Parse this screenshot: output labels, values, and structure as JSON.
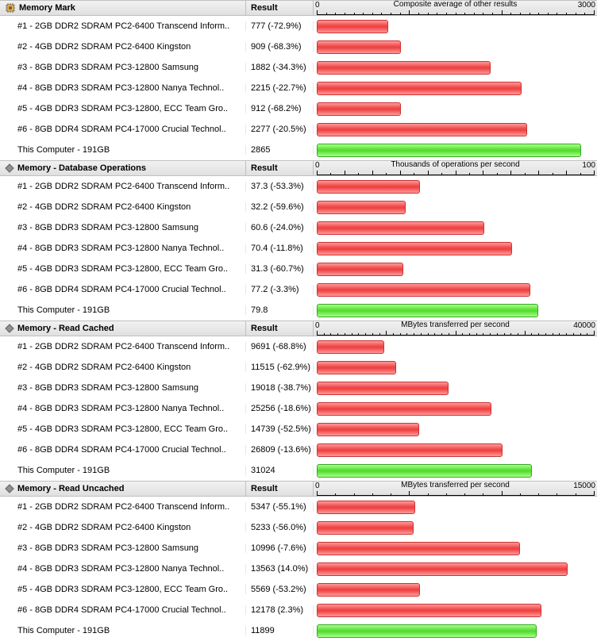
{
  "columns": {
    "name_width": 310,
    "result_width": 85
  },
  "result_header": "Result",
  "bar_colors": {
    "red": "#ee4444",
    "green": "#55dd33"
  },
  "sections": [
    {
      "icon": "memory-chip-icon",
      "title": "Memory Mark",
      "axis_title": "Composite average of other results",
      "axis_min_label": "0",
      "axis_max_label": "3000",
      "axis_max": 3000,
      "major_ticks": 3,
      "minor_per_major": 10,
      "rows": [
        {
          "name": "#1 - 2GB DDR2 SDRAM PC2-6400 Transcend Inform..",
          "result": "777 (-72.9%)",
          "value": 777,
          "color": "red"
        },
        {
          "name": "#2 - 4GB DDR2 SDRAM PC2-6400 Kingston",
          "result": "909 (-68.3%)",
          "value": 909,
          "color": "red"
        },
        {
          "name": "#3 - 8GB DDR3 SDRAM PC3-12800 Samsung",
          "result": "1882 (-34.3%)",
          "value": 1882,
          "color": "red"
        },
        {
          "name": "#4 - 8GB DDR3 SDRAM PC3-12800 Nanya Technol..",
          "result": "2215 (-22.7%)",
          "value": 2215,
          "color": "red"
        },
        {
          "name": "#5 - 4GB DDR3 SDRAM PC3-12800, ECC Team Gro..",
          "result": "912 (-68.2%)",
          "value": 912,
          "color": "red"
        },
        {
          "name": "#6 - 8GB DDR4 SDRAM PC4-17000 Crucial Technol..",
          "result": "2277 (-20.5%)",
          "value": 2277,
          "color": "red"
        },
        {
          "name": "This Computer - 191GB",
          "result": "2865",
          "value": 2865,
          "color": "green"
        }
      ]
    },
    {
      "icon": "diamond-icon",
      "title": "Memory - Database Operations",
      "axis_title": "Thousands of operations per second",
      "axis_min_label": "0",
      "axis_max_label": "100",
      "axis_max": 100,
      "major_ticks": 10,
      "minor_per_major": 2,
      "rows": [
        {
          "name": "#1 - 2GB DDR2 SDRAM PC2-6400 Transcend Inform..",
          "result": "37.3 (-53.3%)",
          "value": 37.3,
          "color": "red"
        },
        {
          "name": "#2 - 4GB DDR2 SDRAM PC2-6400 Kingston",
          "result": "32.2 (-59.6%)",
          "value": 32.2,
          "color": "red"
        },
        {
          "name": "#3 - 8GB DDR3 SDRAM PC3-12800 Samsung",
          "result": "60.6 (-24.0%)",
          "value": 60.6,
          "color": "red"
        },
        {
          "name": "#4 - 8GB DDR3 SDRAM PC3-12800 Nanya Technol..",
          "result": "70.4 (-11.8%)",
          "value": 70.4,
          "color": "red"
        },
        {
          "name": "#5 - 4GB DDR3 SDRAM PC3-12800, ECC Team Gro..",
          "result": "31.3 (-60.7%)",
          "value": 31.3,
          "color": "red"
        },
        {
          "name": "#6 - 8GB DDR4 SDRAM PC4-17000 Crucial Technol..",
          "result": "77.2 (-3.3%)",
          "value": 77.2,
          "color": "red"
        },
        {
          "name": "This Computer - 191GB",
          "result": "79.8",
          "value": 79.8,
          "color": "green"
        }
      ]
    },
    {
      "icon": "diamond-icon",
      "title": "Memory - Read Cached",
      "axis_title": "MBytes transferred per second",
      "axis_min_label": "0",
      "axis_max_label": "40000",
      "axis_max": 40000,
      "major_ticks": 4,
      "minor_per_major": 10,
      "rows": [
        {
          "name": "#1 - 2GB DDR2 SDRAM PC2-6400 Transcend Inform..",
          "result": "9691 (-68.8%)",
          "value": 9691,
          "color": "red"
        },
        {
          "name": "#2 - 4GB DDR2 SDRAM PC2-6400 Kingston",
          "result": "11515 (-62.9%)",
          "value": 11515,
          "color": "red"
        },
        {
          "name": "#3 - 8GB DDR3 SDRAM PC3-12800 Samsung",
          "result": "19018 (-38.7%)",
          "value": 19018,
          "color": "red"
        },
        {
          "name": "#4 - 8GB DDR3 SDRAM PC3-12800 Nanya Technol..",
          "result": "25256 (-18.6%)",
          "value": 25256,
          "color": "red"
        },
        {
          "name": "#5 - 4GB DDR3 SDRAM PC3-12800, ECC Team Gro..",
          "result": "14739 (-52.5%)",
          "value": 14739,
          "color": "red"
        },
        {
          "name": "#6 - 8GB DDR4 SDRAM PC4-17000 Crucial Technol..",
          "result": "26809 (-13.6%)",
          "value": 26809,
          "color": "red"
        },
        {
          "name": "This Computer - 191GB",
          "result": "31024",
          "value": 31024,
          "color": "green"
        }
      ]
    },
    {
      "icon": "diamond-icon",
      "title": "Memory - Read Uncached",
      "axis_title": "MBytes transferred per second",
      "axis_min_label": "0",
      "axis_max_label": "15000",
      "axis_max": 15000,
      "major_ticks": 3,
      "minor_per_major": 5,
      "rows": [
        {
          "name": "#1 - 2GB DDR2 SDRAM PC2-6400 Transcend Inform..",
          "result": "5347 (-55.1%)",
          "value": 5347,
          "color": "red"
        },
        {
          "name": "#2 - 4GB DDR2 SDRAM PC2-6400 Kingston",
          "result": "5233 (-56.0%)",
          "value": 5233,
          "color": "red"
        },
        {
          "name": "#3 - 8GB DDR3 SDRAM PC3-12800 Samsung",
          "result": "10996 (-7.6%)",
          "value": 10996,
          "color": "red"
        },
        {
          "name": "#4 - 8GB DDR3 SDRAM PC3-12800 Nanya Technol..",
          "result": "13563 (14.0%)",
          "value": 13563,
          "color": "red"
        },
        {
          "name": "#5 - 4GB DDR3 SDRAM PC3-12800, ECC Team Gro..",
          "result": "5569 (-53.2%)",
          "value": 5569,
          "color": "red"
        },
        {
          "name": "#6 - 8GB DDR4 SDRAM PC4-17000 Crucial Technol..",
          "result": "12178 (2.3%)",
          "value": 12178,
          "color": "red"
        },
        {
          "name": "This Computer - 191GB",
          "result": "11899",
          "value": 11899,
          "color": "green"
        }
      ]
    }
  ]
}
